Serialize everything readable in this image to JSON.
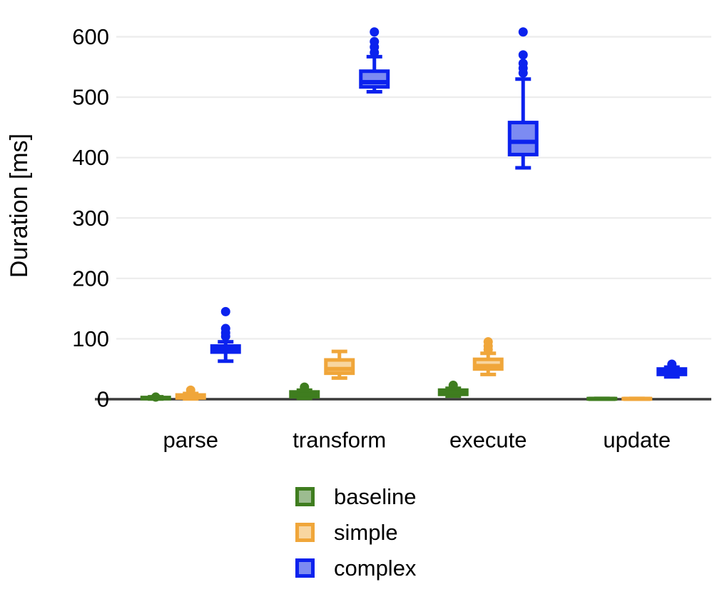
{
  "chart_data": {
    "type": "boxplot",
    "title": "",
    "xlabel": "",
    "ylabel": "Duration [ms]",
    "categories": [
      "parse",
      "transform",
      "execute",
      "update"
    ],
    "y_ticks": [
      0,
      100,
      200,
      300,
      400,
      500,
      600
    ],
    "ylim": [
      0,
      620
    ],
    "grid": "horizontal-only",
    "legend_position": "bottom",
    "colors": {
      "axis_line": "#3b3b3b",
      "gridline": "#ececec",
      "text": "#000000"
    },
    "series": [
      {
        "name": "baseline",
        "stroke": "#3f7d1f",
        "fill": "#9cbc90",
        "boxes": [
          {
            "category": "parse",
            "whislo": 0.3,
            "q1": 0.8,
            "med": 1.8,
            "q3": 2.8,
            "whishi": 4,
            "outliers": [
              3.5
            ]
          },
          {
            "category": "transform",
            "whislo": 1.5,
            "q1": 4,
            "med": 8,
            "q3": 12,
            "whishi": 15,
            "outliers": [
              20
            ]
          },
          {
            "category": "execute",
            "whislo": 5,
            "q1": 8,
            "med": 11.5,
            "q3": 15,
            "whishi": 18,
            "outliers": [
              23
            ]
          },
          {
            "category": "update",
            "whislo": 0.1,
            "q1": 0.3,
            "med": 0.6,
            "q3": 1,
            "whishi": 1.4,
            "outliers": []
          }
        ]
      },
      {
        "name": "simple",
        "stroke": "#f0a63a",
        "fill": "#f8d6a0",
        "boxes": [
          {
            "category": "parse",
            "whislo": 0.5,
            "q1": 2,
            "med": 4,
            "q3": 7,
            "whishi": 9.5,
            "outliers": [
              15
            ]
          },
          {
            "category": "transform",
            "whislo": 35,
            "q1": 43,
            "med": 50,
            "q3": 65,
            "whishi": 79,
            "outliers": []
          },
          {
            "category": "execute",
            "whislo": 41,
            "q1": 50,
            "med": 55,
            "q3": 66,
            "whishi": 76,
            "outliers": [
              82,
              88,
              95
            ]
          },
          {
            "category": "update",
            "whislo": 0.1,
            "q1": 0.3,
            "med": 0.6,
            "q3": 1,
            "whishi": 1.4,
            "outliers": []
          }
        ]
      },
      {
        "name": "complex",
        "stroke": "#0b22ee",
        "fill": "#7c8bf2",
        "boxes": [
          {
            "category": "parse",
            "whislo": 63,
            "q1": 78,
            "med": 83.5,
            "q3": 88,
            "whishi": 95,
            "outliers": [
              104,
              110,
              117,
              145
            ]
          },
          {
            "category": "transform",
            "whislo": 509,
            "q1": 517,
            "med": 525,
            "q3": 543,
            "whishi": 567,
            "outliers": [
              574,
              583,
              592,
              608
            ]
          },
          {
            "category": "execute",
            "whislo": 383,
            "q1": 405,
            "med": 426,
            "q3": 458,
            "whishi": 530,
            "outliers": [
              540,
              548,
              556,
              570,
              608
            ]
          },
          {
            "category": "update",
            "whislo": 37,
            "q1": 41,
            "med": 45.5,
            "q3": 50,
            "whishi": 53,
            "outliers": [
              58
            ]
          }
        ]
      }
    ],
    "legend": [
      {
        "label": "baseline"
      },
      {
        "label": "simple"
      },
      {
        "label": "complex"
      }
    ]
  }
}
